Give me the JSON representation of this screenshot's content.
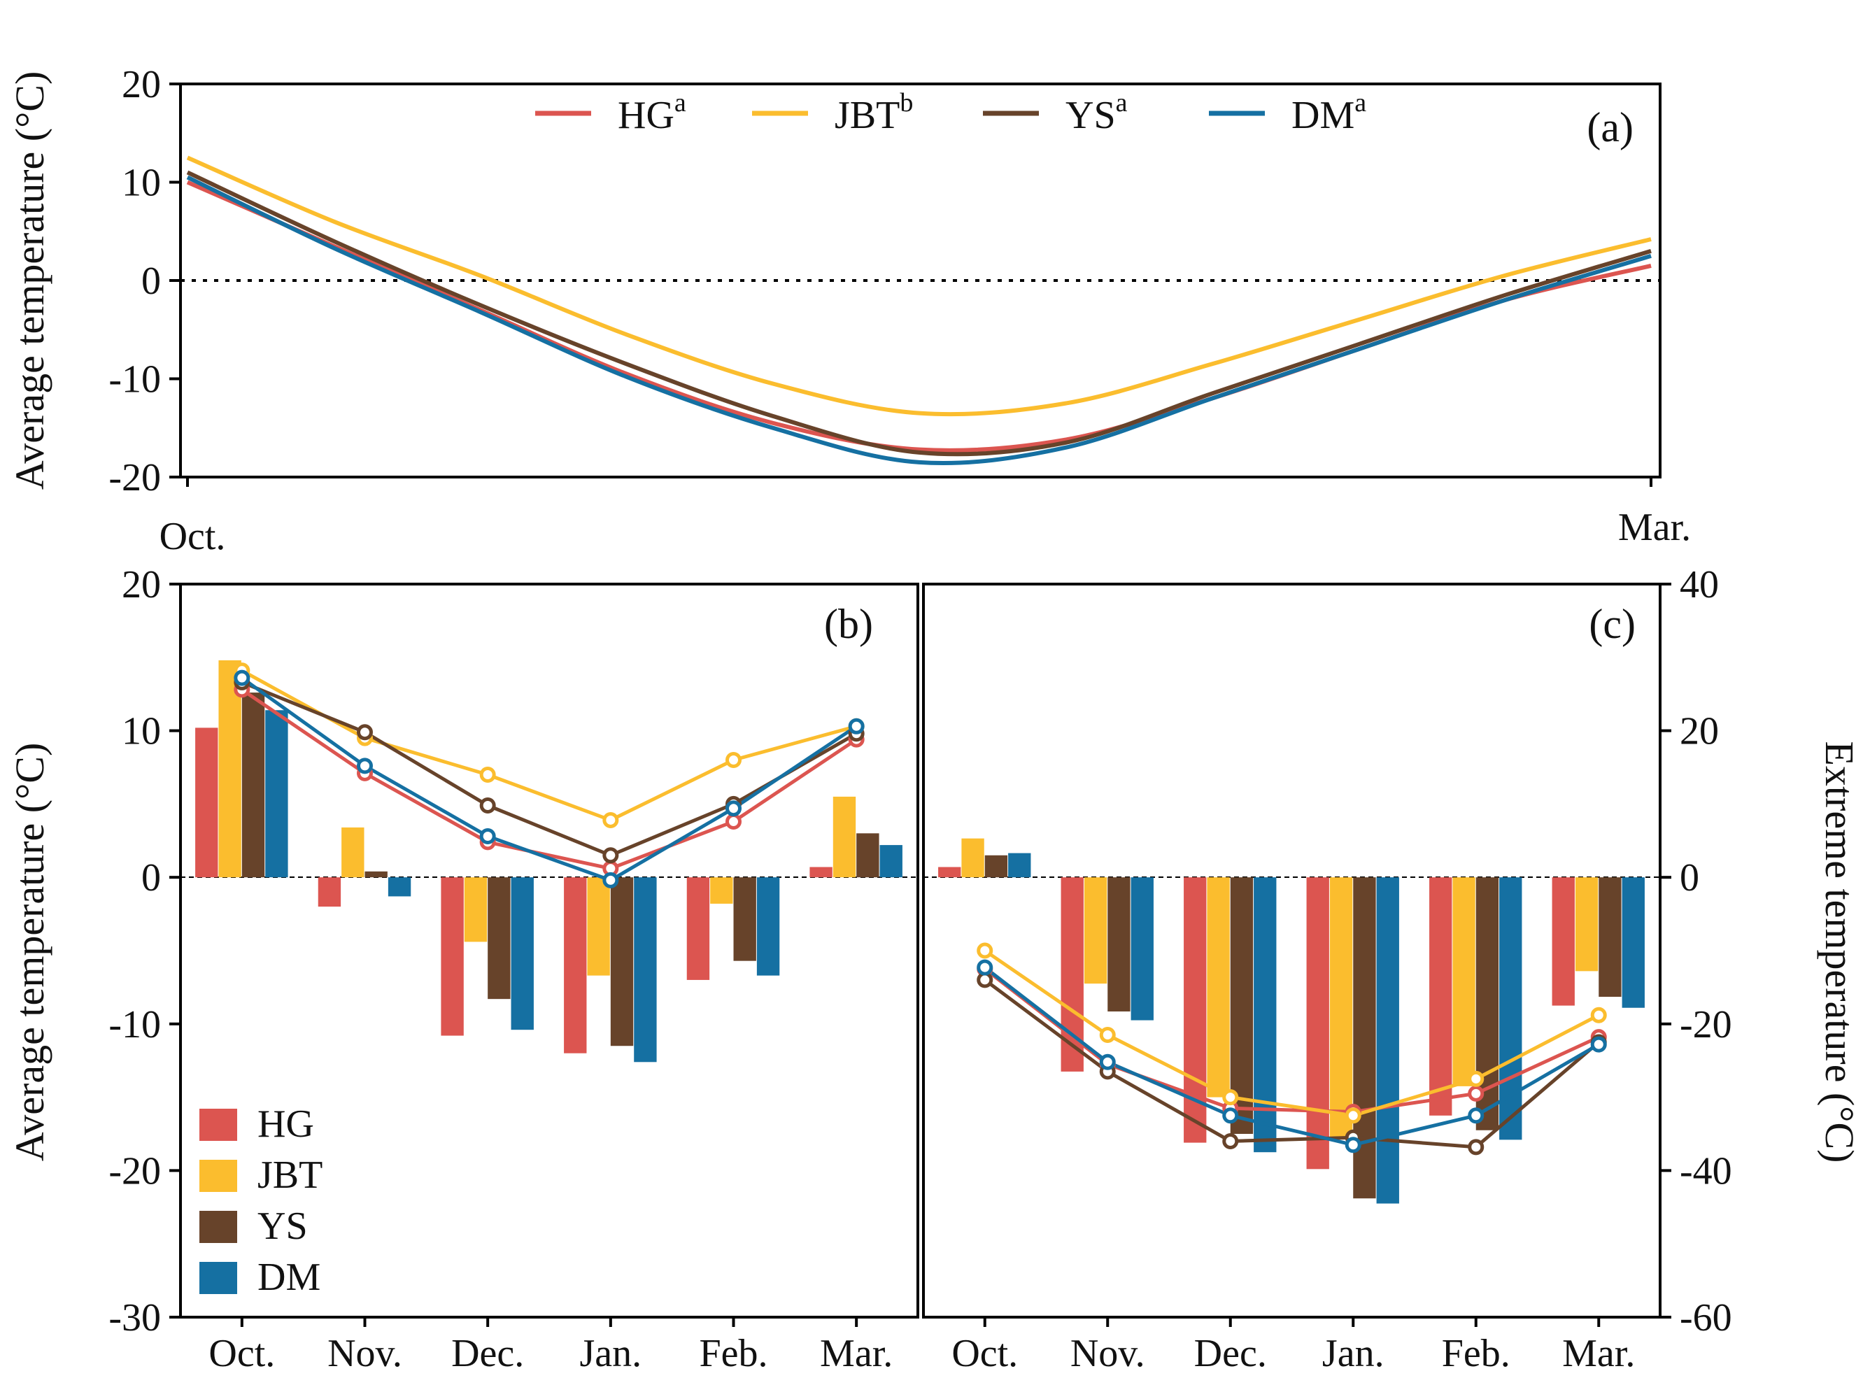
{
  "colors": {
    "HG": "#dc5550",
    "JBT": "#fbbd2e",
    "YS": "#67432a",
    "DM": "#1570a2",
    "axis": "#000000"
  },
  "chart_data": [
    {
      "panel": "(a)",
      "type": "line",
      "ylabel": "Average temperature (°C)",
      "ylim": [
        -20,
        20
      ],
      "yticks": [
        "20",
        "10",
        "0",
        "-10",
        "-20"
      ],
      "xtick_labels": [
        "Oct.",
        "Mar."
      ],
      "reference_line_y": 0,
      "t": [
        0,
        0.1,
        0.2,
        0.3,
        0.4,
        0.5,
        0.6,
        0.7,
        0.8,
        0.9,
        1.0
      ],
      "series": [
        {
          "name": "HG",
          "sup": "a",
          "values": [
            10.0,
            3.5,
            -3.0,
            -9.5,
            -14.5,
            -17.2,
            -16.2,
            -12.0,
            -7.0,
            -2.0,
            1.5
          ]
        },
        {
          "name": "JBT",
          "sup": "b",
          "values": [
            12.5,
            6.0,
            0.5,
            -5.5,
            -10.5,
            -13.5,
            -12.5,
            -8.5,
            -4.0,
            0.5,
            4.2
          ]
        },
        {
          "name": "YS",
          "sup": "a",
          "values": [
            11.0,
            4.0,
            -2.5,
            -8.5,
            -13.8,
            -17.5,
            -16.5,
            -11.5,
            -6.5,
            -1.5,
            3.0
          ]
        },
        {
          "name": "DM",
          "sup": "a",
          "values": [
            10.5,
            3.3,
            -3.2,
            -9.8,
            -15.0,
            -18.5,
            -17.0,
            -12.0,
            -7.0,
            -2.0,
            2.5
          ]
        }
      ]
    },
    {
      "panel": "(b)",
      "type": "bar+line",
      "ylabel": "Average temperature (°C)",
      "ylim": [
        -30,
        20
      ],
      "yticks": [
        "20",
        "10",
        "0",
        "-10",
        "-20",
        "-30"
      ],
      "categories": [
        "Oct.",
        "Nov.",
        "Dec.",
        "Jan.",
        "Feb.",
        "Mar."
      ],
      "bar_series": [
        {
          "name": "HG",
          "values": [
            10.2,
            -2.0,
            -10.8,
            -12.0,
            -7.0,
            0.7
          ]
        },
        {
          "name": "JBT",
          "values": [
            14.8,
            3.4,
            -4.4,
            -6.7,
            -1.8,
            5.5
          ]
        },
        {
          "name": "YS",
          "values": [
            12.6,
            0.4,
            -8.3,
            -11.5,
            -5.7,
            3.0
          ]
        },
        {
          "name": "DM",
          "values": [
            11.4,
            -1.3,
            -10.4,
            -12.6,
            -6.7,
            2.2
          ]
        }
      ],
      "line_series": [
        {
          "name": "HG",
          "values": [
            12.8,
            7.1,
            2.4,
            0.6,
            3.8,
            9.4
          ]
        },
        {
          "name": "JBT",
          "values": [
            14.1,
            9.5,
            7.0,
            3.9,
            8.0,
            10.3
          ]
        },
        {
          "name": "YS",
          "values": [
            13.3,
            9.9,
            4.9,
            1.5,
            5.0,
            9.8
          ]
        },
        {
          "name": "DM",
          "values": [
            13.6,
            7.6,
            2.8,
            -0.2,
            4.7,
            10.3
          ]
        }
      ],
      "legend": [
        "HG",
        "JBT",
        "YS",
        "DM"
      ]
    },
    {
      "panel": "(c)",
      "type": "bar+line",
      "ylabel": "Extreme temperature (°C)",
      "ylim": [
        -60,
        40
      ],
      "yticks": [
        "40",
        "20",
        "0",
        "-20",
        "-40",
        "-60"
      ],
      "categories": [
        "Oct.",
        "Nov.",
        "Dec.",
        "Jan.",
        "Feb.",
        "Mar."
      ],
      "bar_series": [
        {
          "name": "HG",
          "values": [
            1.4,
            -26.5,
            -36.2,
            -39.8,
            -32.5,
            -17.5
          ]
        },
        {
          "name": "JBT",
          "values": [
            5.3,
            -14.5,
            -30.0,
            -35.5,
            -28.5,
            -12.8
          ]
        },
        {
          "name": "YS",
          "values": [
            3.0,
            -18.3,
            -35.0,
            -43.8,
            -34.5,
            -16.3
          ]
        },
        {
          "name": "DM",
          "values": [
            3.3,
            -19.5,
            -37.5,
            -44.5,
            -35.8,
            -17.8
          ]
        }
      ],
      "line_series": [
        {
          "name": "HG",
          "values": [
            -12.5,
            -25.5,
            -31.5,
            -32.0,
            -29.5,
            -21.8
          ]
        },
        {
          "name": "JBT",
          "values": [
            -10.0,
            -21.5,
            -30.0,
            -32.5,
            -27.5,
            -18.8
          ]
        },
        {
          "name": "YS",
          "values": [
            -14.0,
            -26.5,
            -36.0,
            -35.5,
            -36.8,
            -22.5
          ]
        },
        {
          "name": "DM",
          "values": [
            -12.3,
            -25.2,
            -32.5,
            -36.5,
            -32.5,
            -22.8
          ]
        }
      ]
    }
  ]
}
